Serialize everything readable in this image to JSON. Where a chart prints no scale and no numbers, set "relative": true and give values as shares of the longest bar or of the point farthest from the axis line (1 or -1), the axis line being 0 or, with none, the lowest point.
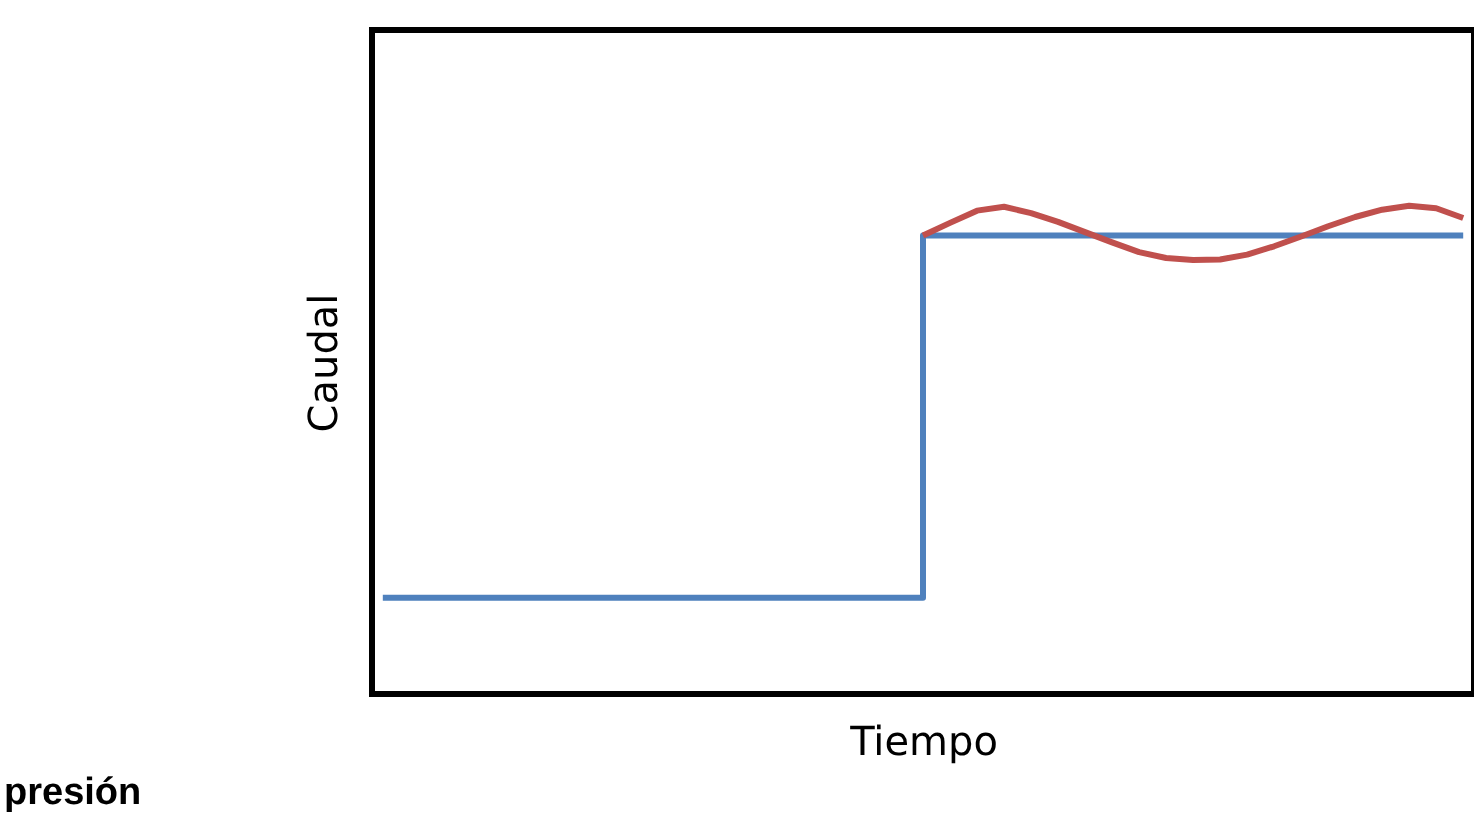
{
  "chart_data": {
    "type": "line",
    "relative": true,
    "xlabel": "Tiempo",
    "ylabel": "Caudal",
    "annotations": [
      "presión"
    ],
    "tick_labels": false,
    "grid": false,
    "categories": [
      null,
      null,
      null,
      null,
      null,
      null,
      null,
      null,
      null,
      null,
      null,
      null,
      null,
      null,
      null,
      null,
      null,
      null,
      null,
      null,
      null,
      null,
      null,
      null,
      null,
      null,
      null,
      null,
      null,
      null,
      null,
      null,
      null,
      null,
      null,
      null,
      null,
      null,
      null,
      null,
      null
    ],
    "series": [
      {
        "type": "step",
        "color": "#4f81bd",
        "values": [
          0.197,
          0.197,
          0.197,
          0.197,
          0.197,
          0.197,
          0.197,
          0.197,
          0.197,
          0.197,
          0.197,
          0.197,
          0.197,
          0.197,
          0.197,
          0.197,
          0.197,
          0.197,
          0.197,
          0.197,
          0.939,
          0.939,
          0.939,
          0.939,
          0.939,
          0.939,
          0.939,
          0.939,
          0.939,
          0.939,
          0.939,
          0.939,
          0.939,
          0.939,
          0.939,
          0.939,
          0.939,
          0.939,
          0.939,
          0.939,
          0.939
        ]
      },
      {
        "color": "#c0504d",
        "values": [
          null,
          null,
          null,
          null,
          null,
          null,
          null,
          null,
          null,
          null,
          null,
          null,
          null,
          null,
          null,
          null,
          null,
          null,
          null,
          null,
          0.939,
          0.965,
          0.99,
          0.998,
          0.985,
          0.967,
          0.946,
          0.925,
          0.905,
          0.893,
          0.889,
          0.89,
          0.9,
          0.917,
          0.937,
          0.958,
          0.977,
          0.992,
          1.0,
          0.995,
          0.975
        ]
      }
    ]
  }
}
